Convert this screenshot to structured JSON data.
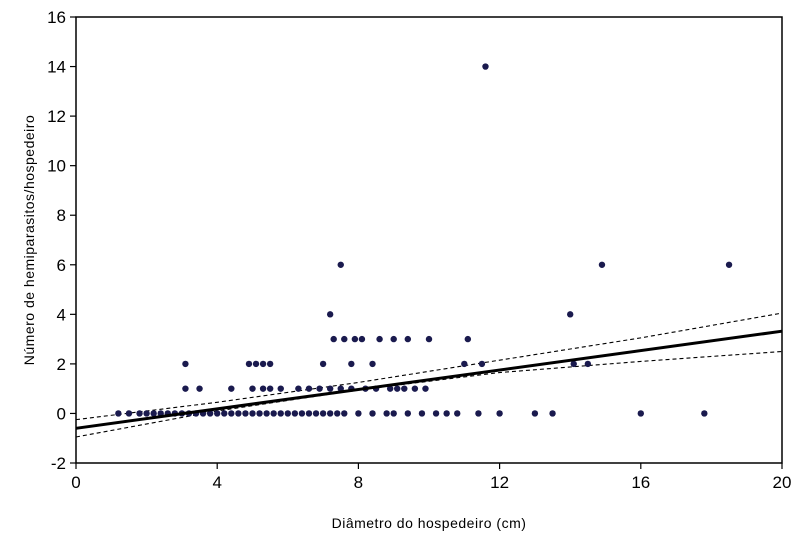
{
  "chart_data": {
    "type": "scatter",
    "title": "",
    "xlabel": "Diâmetro do hospedeiro (cm)",
    "ylabel": "Número de hemiparasitos/hospedeiro",
    "xlim": [
      0,
      20
    ],
    "ylim": [
      -2,
      16
    ],
    "xticks": [
      0,
      4,
      8,
      12,
      16,
      20
    ],
    "yticks": [
      -2,
      0,
      2,
      4,
      6,
      8,
      10,
      12,
      14,
      16
    ],
    "grid": false,
    "legend": "none",
    "point_color": "#1a1a4e",
    "line_color": "#000000",
    "points": [
      [
        1.2,
        0
      ],
      [
        1.5,
        0
      ],
      [
        1.8,
        0
      ],
      [
        2.0,
        0
      ],
      [
        2.2,
        0
      ],
      [
        2.4,
        0
      ],
      [
        2.6,
        0
      ],
      [
        2.8,
        0
      ],
      [
        3.0,
        0
      ],
      [
        3.2,
        0
      ],
      [
        3.4,
        0
      ],
      [
        3.6,
        0
      ],
      [
        3.8,
        0
      ],
      [
        4.0,
        0
      ],
      [
        4.2,
        0
      ],
      [
        4.4,
        0
      ],
      [
        4.6,
        0
      ],
      [
        4.8,
        0
      ],
      [
        5.0,
        0
      ],
      [
        5.2,
        0
      ],
      [
        5.4,
        0
      ],
      [
        5.6,
        0
      ],
      [
        5.8,
        0
      ],
      [
        6.0,
        0
      ],
      [
        6.2,
        0
      ],
      [
        6.4,
        0
      ],
      [
        6.6,
        0
      ],
      [
        6.8,
        0
      ],
      [
        7.0,
        0
      ],
      [
        7.2,
        0
      ],
      [
        7.4,
        0
      ],
      [
        7.6,
        0
      ],
      [
        8.0,
        0
      ],
      [
        8.4,
        0
      ],
      [
        8.8,
        0
      ],
      [
        9.0,
        0
      ],
      [
        9.4,
        0
      ],
      [
        9.8,
        0
      ],
      [
        10.2,
        0
      ],
      [
        10.5,
        0
      ],
      [
        10.8,
        0
      ],
      [
        11.4,
        0
      ],
      [
        12.0,
        0
      ],
      [
        13.0,
        0
      ],
      [
        13.5,
        0
      ],
      [
        16.0,
        0
      ],
      [
        17.8,
        0
      ],
      [
        3.1,
        1
      ],
      [
        3.5,
        1
      ],
      [
        4.4,
        1
      ],
      [
        5.0,
        1
      ],
      [
        5.3,
        1
      ],
      [
        5.5,
        1
      ],
      [
        5.8,
        1
      ],
      [
        6.3,
        1
      ],
      [
        6.6,
        1
      ],
      [
        6.9,
        1
      ],
      [
        7.2,
        1
      ],
      [
        7.5,
        1
      ],
      [
        7.8,
        1
      ],
      [
        8.2,
        1
      ],
      [
        8.5,
        1
      ],
      [
        8.9,
        1
      ],
      [
        9.1,
        1
      ],
      [
        9.3,
        1
      ],
      [
        9.6,
        1
      ],
      [
        9.9,
        1
      ],
      [
        3.1,
        2
      ],
      [
        4.9,
        2
      ],
      [
        5.1,
        2
      ],
      [
        5.3,
        2
      ],
      [
        5.5,
        2
      ],
      [
        7.0,
        2
      ],
      [
        7.8,
        2
      ],
      [
        8.4,
        2
      ],
      [
        11.0,
        2
      ],
      [
        11.5,
        2
      ],
      [
        14.1,
        2
      ],
      [
        14.5,
        2
      ],
      [
        7.3,
        3
      ],
      [
        7.6,
        3
      ],
      [
        7.9,
        3
      ],
      [
        8.1,
        3
      ],
      [
        8.6,
        3
      ],
      [
        9.0,
        3
      ],
      [
        9.4,
        3
      ],
      [
        10.0,
        3
      ],
      [
        11.1,
        3
      ],
      [
        7.2,
        4
      ],
      [
        14.0,
        4
      ],
      [
        7.5,
        6
      ],
      [
        14.9,
        6
      ],
      [
        18.5,
        6
      ],
      [
        11.6,
        14
      ]
    ],
    "regression": {
      "intercept": -0.6,
      "slope": 0.196,
      "ci_lower": [
        [
          0,
          -0.95
        ],
        [
          4,
          0.1
        ],
        [
          8,
          0.95
        ],
        [
          12,
          1.65
        ],
        [
          16,
          2.1
        ],
        [
          20,
          2.5
        ]
      ],
      "ci_upper": [
        [
          0,
          -0.25
        ],
        [
          4,
          0.45
        ],
        [
          8,
          1.25
        ],
        [
          12,
          2.15
        ],
        [
          16,
          3.05
        ],
        [
          20,
          4.05
        ]
      ]
    }
  }
}
